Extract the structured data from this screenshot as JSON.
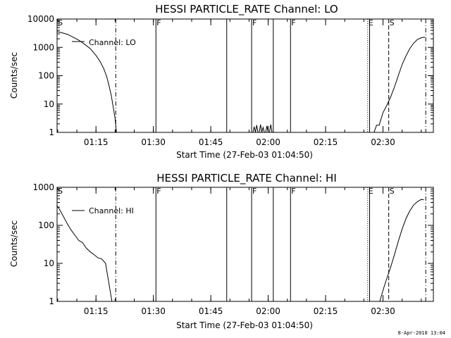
{
  "footer": {
    "timestamp": "8-Apr-2010 13:04"
  },
  "chart_data": [
    {
      "type": "line",
      "title": "HESSI PARTICLE_RATE Channel: LO",
      "xlabel": "Start Time (27-Feb-03 01:04:50)",
      "ylabel": "Counts/sec",
      "yscale": "log",
      "ylim": [
        1,
        10000
      ],
      "xlim": [
        "01:04:50",
        "02:43:10"
      ],
      "xticks": [
        "01:15",
        "01:30",
        "01:45",
        "02:00",
        "02:15",
        "02:30"
      ],
      "yticks": [
        "1",
        "10",
        "100",
        "1000",
        "10000"
      ],
      "legend": {
        "position": "top-left",
        "entries": [
          "Channel: LO"
        ]
      },
      "grid": false,
      "events": [
        {
          "label": "S",
          "time": "01:04:50",
          "style": "solid"
        },
        {
          "label": "",
          "time": "01:20:10",
          "style": "dashdot"
        },
        {
          "label": "F",
          "time": "01:30:40",
          "style": "solid"
        },
        {
          "label": "",
          "time": "01:49:10",
          "style": "solid"
        },
        {
          "label": "F",
          "time": "01:55:40",
          "style": "solid"
        },
        {
          "label": "",
          "time": "02:01:20",
          "style": "solid"
        },
        {
          "label": "F",
          "time": "02:05:50",
          "style": "solid"
        },
        {
          "label": "E",
          "time": "02:26:00",
          "style": "dotted"
        },
        {
          "label": "",
          "time": "02:26:30",
          "style": "solid"
        },
        {
          "label": "S",
          "time": "02:31:30",
          "style": "dashed"
        },
        {
          "label": "",
          "time": "02:41:10",
          "style": "dashdot"
        }
      ],
      "series": [
        {
          "name": "Channel: LO",
          "segments": [
            {
              "x": [
                "01:04:50",
                "01:06:00",
                "01:07:30",
                "01:09:00",
                "01:10:30",
                "01:12:00",
                "01:13:30",
                "01:15:00",
                "01:16:00",
                "01:17:00",
                "01:17:50",
                "01:18:30",
                "01:19:00",
                "01:19:30",
                "01:20:00",
                "01:20:20"
              ],
              "y": [
                3600,
                3300,
                2900,
                2300,
                1800,
                1300,
                900,
                520,
                330,
                180,
                90,
                40,
                20,
                8,
                3,
                1
              ]
            },
            {
              "x": [
                "01:56:00",
                "01:56:20",
                "01:56:40",
                "01:57:00",
                "01:57:20",
                "01:57:40",
                "01:58:00",
                "01:58:20",
                "01:58:40",
                "01:59:00",
                "01:59:20",
                "01:59:40",
                "02:00:00",
                "02:00:20",
                "02:00:40",
                "02:01:00"
              ],
              "y": [
                1,
                1.6,
                1,
                1.8,
                1,
                1,
                1.9,
                1,
                1.5,
                1,
                1,
                1.7,
                1,
                1,
                1.9,
                1
              ]
            },
            {
              "x": [
                "02:27:00",
                "02:27:40",
                "02:28:20",
                "02:29:00",
                "02:29:30",
                "02:30:00",
                "02:31:00",
                "02:32:00",
                "02:33:00",
                "02:34:00",
                "02:35:00",
                "02:36:00",
                "02:37:00",
                "02:38:00",
                "02:39:00",
                "02:40:00",
                "02:41:00"
              ],
              "y": [
                1,
                1,
                1.8,
                1.8,
                3,
                5,
                9,
                18,
                40,
                100,
                250,
                500,
                900,
                1400,
                1900,
                2200,
                2300
              ]
            }
          ]
        }
      ]
    },
    {
      "type": "line",
      "title": "HESSI PARTICLE_RATE Channel: HI",
      "xlabel": "Start Time (27-Feb-03 01:04:50)",
      "ylabel": "Counts/sec",
      "yscale": "log",
      "ylim": [
        1,
        1000
      ],
      "xlim": [
        "01:04:50",
        "02:43:10"
      ],
      "xticks": [
        "01:15",
        "01:30",
        "01:45",
        "02:00",
        "02:15",
        "02:30"
      ],
      "yticks": [
        "1",
        "10",
        "100",
        "1000"
      ],
      "legend": {
        "position": "top-left",
        "entries": [
          "Channel: HI"
        ]
      },
      "grid": false,
      "events": [
        {
          "label": "S",
          "time": "01:04:50",
          "style": "solid"
        },
        {
          "label": "",
          "time": "01:20:10",
          "style": "dashdot"
        },
        {
          "label": "F",
          "time": "01:30:40",
          "style": "solid"
        },
        {
          "label": "",
          "time": "01:49:10",
          "style": "solid"
        },
        {
          "label": "F",
          "time": "01:55:40",
          "style": "solid"
        },
        {
          "label": "",
          "time": "02:01:20",
          "style": "solid"
        },
        {
          "label": "F",
          "time": "02:05:50",
          "style": "solid"
        },
        {
          "label": "E",
          "time": "02:26:00",
          "style": "dotted"
        },
        {
          "label": "",
          "time": "02:26:30",
          "style": "solid"
        },
        {
          "label": "S",
          "time": "02:31:30",
          "style": "dashed"
        },
        {
          "label": "",
          "time": "02:41:10",
          "style": "dashdot"
        }
      ],
      "series": [
        {
          "name": "Channel: HI",
          "segments": [
            {
              "x": [
                "01:04:50",
                "01:05:30",
                "01:06:30",
                "01:07:30",
                "01:08:30",
                "01:09:30",
                "01:10:30",
                "01:11:30",
                "01:12:30",
                "01:13:30",
                "01:14:30",
                "01:15:30",
                "01:16:30",
                "01:17:30",
                "01:18:00",
                "01:18:40",
                "01:19:10"
              ],
              "y": [
                330,
                260,
                170,
                110,
                75,
                55,
                40,
                35,
                25,
                20,
                17,
                14,
                13,
                10,
                5,
                2,
                1
              ]
            },
            {
              "x": [
                "02:29:10",
                "02:29:40",
                "02:30:20",
                "02:31:00",
                "02:32:00",
                "02:33:00",
                "02:34:00",
                "02:35:00",
                "02:36:00",
                "02:37:00",
                "02:38:00",
                "02:39:00",
                "02:40:00",
                "02:40:40"
              ],
              "y": [
                1,
                1.5,
                2.5,
                4,
                8,
                17,
                38,
                80,
                150,
                240,
                340,
                420,
                480,
                470
              ]
            }
          ]
        }
      ]
    }
  ]
}
